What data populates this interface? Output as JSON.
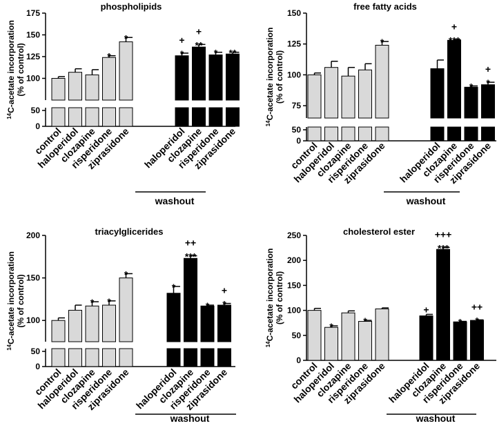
{
  "ylabel_sup": "14",
  "ylabel_main": "C-acetate incorporation",
  "ylabel_sub": "(% of control)",
  "washout_label": "washout",
  "colors": {
    "fresh": "#d9d9d9",
    "washout": "#000000",
    "axis": "#000000"
  },
  "chart_data": [
    {
      "type": "bar",
      "title": "phospholipids",
      "categories": [
        "control",
        "haloperidol",
        "clozapine",
        "risperidone",
        "ziprasidone",
        "haloperidol",
        "clozapine",
        "risperidone",
        "ziprasidone"
      ],
      "groups": [
        "fresh",
        "fresh",
        "fresh",
        "fresh",
        "fresh",
        "washout",
        "washout",
        "washout",
        "washout"
      ],
      "values": [
        100,
        107,
        104,
        124,
        142,
        126,
        136,
        127,
        128
      ],
      "errors": [
        2,
        4,
        6,
        2,
        5,
        3,
        3,
        3,
        2
      ],
      "annotations": [
        "",
        "",
        "",
        "*",
        "*",
        "+\n*",
        "+\n**",
        "*",
        "**"
      ],
      "ylim": [
        75,
        175
      ],
      "yticks": [
        100,
        125,
        150,
        175
      ],
      "ytick_labels": [
        "100",
        "125",
        "150",
        "175"
      ],
      "low_ticks": [
        "50",
        "0"
      ],
      "xlabel": "washout"
    },
    {
      "type": "bar",
      "title": "free fatty acids",
      "categories": [
        "control",
        "haloperidol",
        "clozapine",
        "risperidone",
        "ziprasidone",
        "haloperidol",
        "clozapine",
        "risperidone",
        "ziprasidone"
      ],
      "groups": [
        "fresh",
        "fresh",
        "fresh",
        "fresh",
        "fresh",
        "washout",
        "washout",
        "washout",
        "washout"
      ],
      "values": [
        100,
        106,
        99,
        104,
        124,
        105,
        128,
        90,
        92
      ],
      "errors": [
        1.5,
        5,
        7,
        5,
        3,
        7,
        0.5,
        1,
        2
      ],
      "annotations": [
        "",
        "",
        "",
        "",
        "*",
        "",
        "+\n***",
        "*",
        "+\n*"
      ],
      "ylim": [
        65,
        150
      ],
      "yticks": [
        75,
        100,
        125,
        150
      ],
      "ytick_labels": [
        "75",
        "100",
        "125",
        "150"
      ],
      "low_ticks": [
        "50",
        "0"
      ],
      "xlabel": "washout"
    },
    {
      "type": "bar",
      "title": "triacylglicerides",
      "categories": [
        "control",
        "haloperidol",
        "clozapine",
        "risperidone",
        "ziprasidone",
        "haloperidol",
        "clozapine",
        "risperidone",
        "ziprasidone"
      ],
      "groups": [
        "fresh",
        "fresh",
        "fresh",
        "fresh",
        "fresh",
        "washout",
        "washout",
        "washout",
        "washout"
      ],
      "values": [
        100,
        112,
        117,
        118,
        150,
        132,
        173,
        117,
        118
      ],
      "errors": [
        3,
        6,
        5,
        5,
        5,
        8,
        3,
        1,
        2
      ],
      "annotations": [
        "",
        "",
        "*",
        "*",
        "*",
        "*",
        "++\n***",
        "*",
        "+\n*"
      ],
      "ylim": [
        75,
        200
      ],
      "yticks": [
        100,
        150,
        200
      ],
      "ytick_labels": [
        "100",
        "150",
        "200"
      ],
      "low_ticks": [
        "50",
        "0"
      ],
      "xlabel": "washout"
    },
    {
      "type": "bar",
      "title": "cholesterol ester",
      "categories": [
        "control",
        "haloperidol",
        "clozapine",
        "risperidone",
        "ziprasidone",
        "haloperidol",
        "clozapine",
        "risperidone",
        "ziprasidone"
      ],
      "groups": [
        "fresh",
        "fresh",
        "fresh",
        "fresh",
        "fresh",
        "washout",
        "washout",
        "washout",
        "washout"
      ],
      "values": [
        100,
        66,
        95,
        78,
        103,
        89,
        222,
        77,
        80
      ],
      "errors": [
        4,
        3,
        4,
        2,
        2,
        3,
        4,
        1,
        1
      ],
      "annotations": [
        "",
        "*",
        "",
        "*",
        "",
        "+",
        "+++\n***",
        "*",
        "++\n*"
      ],
      "ylim": [
        0,
        250
      ],
      "yticks": [
        0,
        50,
        100,
        150,
        200,
        250
      ],
      "ytick_labels": [
        "0",
        "50",
        "100",
        "150",
        "200",
        "250"
      ],
      "low_ticks": [],
      "xlabel": "washout"
    }
  ]
}
